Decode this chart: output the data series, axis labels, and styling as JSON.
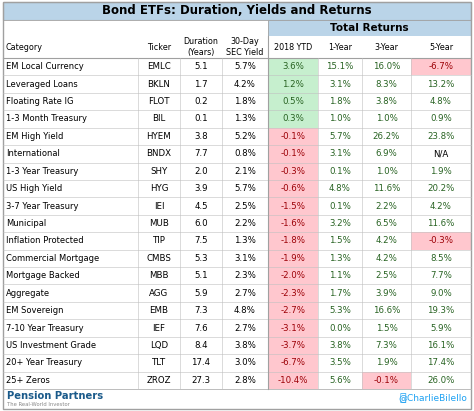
{
  "title": "Bond ETFs: Duration, Yields and Returns",
  "rows": [
    [
      "EM Local Currency",
      "EMLC",
      "5.1",
      "5.7%",
      "3.6%",
      "15.1%",
      "16.0%",
      "-6.7%"
    ],
    [
      "Leveraged Loans",
      "BKLN",
      "1.7",
      "4.2%",
      "1.2%",
      "3.1%",
      "8.3%",
      "13.2%"
    ],
    [
      "Floating Rate IG",
      "FLOT",
      "0.2",
      "1.8%",
      "0.5%",
      "1.8%",
      "3.8%",
      "4.8%"
    ],
    [
      "1-3 Month Treasury",
      "BIL",
      "0.1",
      "1.3%",
      "0.3%",
      "1.0%",
      "1.0%",
      "0.9%"
    ],
    [
      "EM High Yield",
      "HYEM",
      "3.8",
      "5.2%",
      "-0.1%",
      "5.7%",
      "26.2%",
      "23.8%"
    ],
    [
      "International",
      "BNDX",
      "7.7",
      "0.8%",
      "-0.1%",
      "3.1%",
      "6.9%",
      "N/A"
    ],
    [
      "1-3 Year Treasury",
      "SHY",
      "2.0",
      "2.1%",
      "-0.3%",
      "0.1%",
      "1.0%",
      "1.9%"
    ],
    [
      "US High Yield",
      "HYG",
      "3.9",
      "5.7%",
      "-0.6%",
      "4.8%",
      "11.6%",
      "20.2%"
    ],
    [
      "3-7 Year Treasury",
      "IEI",
      "4.5",
      "2.5%",
      "-1.5%",
      "0.1%",
      "2.2%",
      "4.2%"
    ],
    [
      "Municipal",
      "MUB",
      "6.0",
      "2.2%",
      "-1.6%",
      "3.2%",
      "6.5%",
      "11.6%"
    ],
    [
      "Inflation Protected",
      "TIP",
      "7.5",
      "1.3%",
      "-1.8%",
      "1.5%",
      "4.2%",
      "-0.3%"
    ],
    [
      "Commercial Mortgage",
      "CMBS",
      "5.3",
      "3.1%",
      "-1.9%",
      "1.3%",
      "4.2%",
      "8.5%"
    ],
    [
      "Mortgage Backed",
      "MBB",
      "5.1",
      "2.3%",
      "-2.0%",
      "1.1%",
      "2.5%",
      "7.7%"
    ],
    [
      "Aggregate",
      "AGG",
      "5.9",
      "2.7%",
      "-2.3%",
      "1.7%",
      "3.9%",
      "9.0%"
    ],
    [
      "EM Sovereign",
      "EMB",
      "7.3",
      "4.8%",
      "-2.7%",
      "5.3%",
      "16.6%",
      "19.3%"
    ],
    [
      "7-10 Year Treasury",
      "IEF",
      "7.6",
      "2.7%",
      "-3.1%",
      "0.0%",
      "1.5%",
      "5.9%"
    ],
    [
      "US Investment Grade",
      "LQD",
      "8.4",
      "3.8%",
      "-3.7%",
      "3.8%",
      "7.3%",
      "16.1%"
    ],
    [
      "20+ Year Treasury",
      "TLT",
      "17.4",
      "3.0%",
      "-6.7%",
      "3.5%",
      "1.9%",
      "17.4%"
    ],
    [
      "25+ Zeros",
      "ZROZ",
      "27.3",
      "2.8%",
      "-10.4%",
      "5.6%",
      "-0.1%",
      "26.0%"
    ]
  ],
  "special_pink": [
    [
      0,
      7
    ],
    [
      10,
      7
    ],
    [
      18,
      6
    ]
  ],
  "title_bg": "#bad4e8",
  "total_returns_bg": "#bad4e8",
  "green_bg": "#c6efce",
  "red_bg": "#ffc7ce",
  "green_text": "#276221",
  "red_text": "#9c0006",
  "black_text": "#000000",
  "border_color": "#a0a0a0",
  "line_color": "#c0c0c0",
  "footer_left": "Pension Partners",
  "footer_sub": "The Real-World Investor",
  "footer_right": "@CharlieBilello",
  "footer_blue": "#1da1f2",
  "pension_blue": "#1a5a8a"
}
